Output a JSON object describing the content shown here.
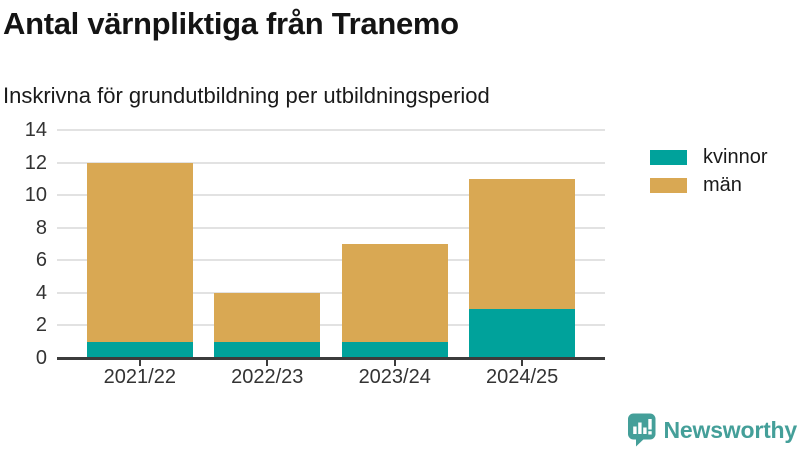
{
  "header": {
    "title": "Antal värnpliktiga från Tranemo",
    "subtitle": "Inskrivna för grundutbildning per utbildningsperiod"
  },
  "chart_data": {
    "type": "bar",
    "stacked": true,
    "title": "Antal värnpliktiga från Tranemo",
    "subtitle": "Inskrivna för grundutbildning per utbildningsperiod",
    "categories": [
      "2021/22",
      "2022/23",
      "2023/24",
      "2024/25"
    ],
    "series": [
      {
        "name": "kvinnor",
        "color": "#00a29b",
        "values": [
          1,
          1,
          1,
          3
        ]
      },
      {
        "name": "män",
        "color": "#d9a853",
        "values": [
          11,
          3,
          6,
          8
        ]
      }
    ],
    "stack_totals": [
      12,
      4,
      7,
      11
    ],
    "xlabel": "",
    "ylabel": "",
    "ylim": [
      0,
      14
    ],
    "yticks": [
      0,
      2,
      4,
      6,
      8,
      10,
      12,
      14
    ],
    "grid": "horizontal",
    "legend_position": "right"
  },
  "legend": {
    "items": [
      {
        "label": "kvinnor",
        "color": "#00a29b"
      },
      {
        "label": "män",
        "color": "#d9a853"
      }
    ]
  },
  "branding": {
    "name": "Newsworthy",
    "color": "#449f99"
  },
  "style": {
    "background": "#ffffff",
    "grid_color": "#e2e2e2",
    "axis_color": "#3c3c3c",
    "tick_text_color": "#333333",
    "title_color": "#141414"
  }
}
